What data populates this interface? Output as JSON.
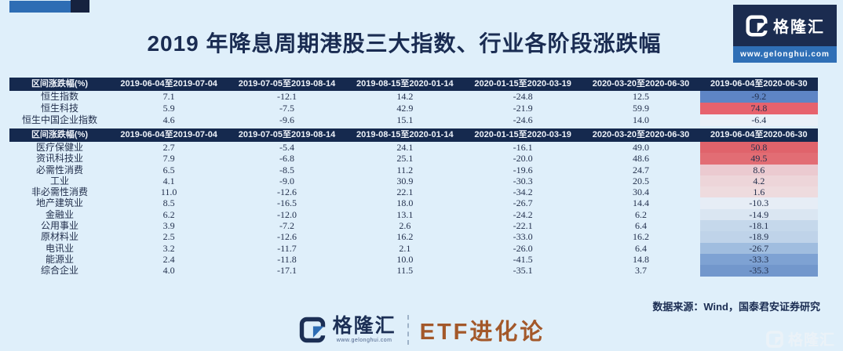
{
  "page": {
    "title": "2019 年降息周期港股三大指数、行业各阶段涨跌幅",
    "source_note": "数据来源：Wind，国泰君安证券研究"
  },
  "brand": {
    "name": "格隆汇",
    "letter": "G",
    "website": "www.gelonghui.com",
    "channel": "ETF进化论"
  },
  "colors": {
    "background": "#dfeffa",
    "header_bg": "#15294e",
    "title_text": "#1a2c52",
    "accent_blue": "#2e6db4",
    "accent_navy": "#16223f",
    "logo_box_bg": "#1b2c50",
    "logo_url_bg": "#2f6fb6",
    "etf_brown": "#a3582a",
    "heat_red_strong": "#e7626d",
    "heat_blue_strong": "#5e85c5"
  },
  "chart_data": [
    {
      "type": "table",
      "name": "indices",
      "columns": [
        "区间涨跌幅(%)",
        "2019-06-04至2019-07-04",
        "2019-07-05至2019-08-14",
        "2019-08-15至2020-01-14",
        "2020-01-15至2020-03-19",
        "2020-03-20至2020-06-30",
        "2019-06-04至2020-06-30"
      ],
      "rows": [
        [
          "恒生指数",
          "7.1",
          "-12.1",
          "14.2",
          "-24.8",
          "12.5",
          "-9.2"
        ],
        [
          "恒生科技",
          "5.9",
          "-7.5",
          "42.9",
          "-21.9",
          "59.9",
          "74.8"
        ],
        [
          "恒生中国企业指数",
          "4.6",
          "-9.6",
          "15.1",
          "-24.6",
          "14.0",
          "-6.4"
        ]
      ],
      "last_col_bg": [
        "#5e85c5",
        "#e7626d",
        "#e9f0f8"
      ]
    },
    {
      "type": "table",
      "name": "industries",
      "columns": [
        "区间涨跌幅(%)",
        "2019-06-04至2019-07-04",
        "2019-07-05至2019-08-14",
        "2019-08-15至2020-01-14",
        "2020-01-15至2020-03-19",
        "2020-03-20至2020-06-30",
        "2019-06-04至2020-06-30"
      ],
      "rows": [
        [
          "医疗保健业",
          "2.7",
          "-5.4",
          "24.1",
          "-16.1",
          "49.0",
          "50.8"
        ],
        [
          "资讯科技业",
          "7.9",
          "-6.8",
          "25.1",
          "-20.0",
          "48.6",
          "49.5"
        ],
        [
          "必需性消费",
          "6.5",
          "-8.5",
          "11.2",
          "-19.6",
          "24.7",
          "8.6"
        ],
        [
          "工业",
          "4.1",
          "-9.0",
          "30.9",
          "-30.3",
          "20.5",
          "4.2"
        ],
        [
          "非必需性消费",
          "11.0",
          "-12.6",
          "22.1",
          "-34.2",
          "30.4",
          "1.6"
        ],
        [
          "地产建筑业",
          "8.5",
          "-16.5",
          "18.0",
          "-26.7",
          "14.4",
          "-10.3"
        ],
        [
          "金融业",
          "6.2",
          "-12.0",
          "13.1",
          "-24.2",
          "6.2",
          "-14.9"
        ],
        [
          "公用事业",
          "3.9",
          "-7.2",
          "2.6",
          "-22.1",
          "6.4",
          "-18.1"
        ],
        [
          "原材料业",
          "2.5",
          "-12.6",
          "16.2",
          "-33.0",
          "16.2",
          "-18.9"
        ],
        [
          "电讯业",
          "3.2",
          "-11.7",
          "2.1",
          "-26.0",
          "6.4",
          "-26.7"
        ],
        [
          "能源业",
          "2.4",
          "-11.8",
          "10.0",
          "-41.5",
          "14.8",
          "-33.3"
        ],
        [
          "综合企业",
          "4.0",
          "-17.1",
          "11.5",
          "-35.1",
          "3.7",
          "-35.3"
        ]
      ],
      "last_col_bg": [
        "#e0636b",
        "#e26d74",
        "#ebcad0",
        "#edd5d9",
        "#eedbde",
        "#e6edf6",
        "#dae6f2",
        "#c5d8eb",
        "#bfd3e9",
        "#a0bddf",
        "#7ea2d3",
        "#7297cc"
      ]
    }
  ]
}
